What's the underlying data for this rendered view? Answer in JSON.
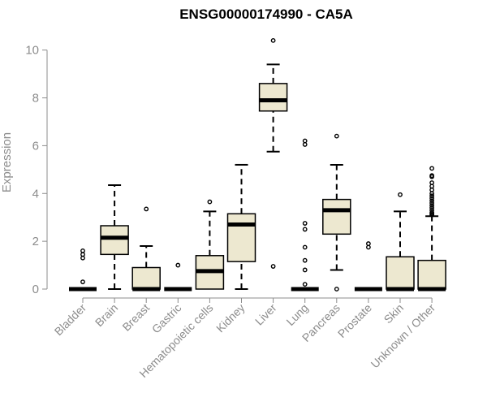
{
  "chart_data": {
    "type": "box",
    "title": "ENSG00000174990 - CA5A",
    "ylabel": "Expression",
    "xlabel": "",
    "ylim": [
      0,
      10.6
    ],
    "yticks": [
      0,
      2,
      4,
      6,
      8,
      10
    ],
    "grid": false,
    "legend": "none",
    "box_fill": "#ede8d0",
    "categories": [
      "Bladder",
      "Brain",
      "Breast",
      "Gastric",
      "Hematopoietic cells",
      "Kidney",
      "Liver",
      "Lung",
      "Pancreas",
      "Prostate",
      "Skin",
      "Unknown / Other"
    ],
    "boxes": [
      {
        "category": "Bladder",
        "q1": 0,
        "median": 0,
        "q3": 0,
        "whisker_low": 0,
        "whisker_high": 0,
        "outliers": [
          1.6,
          1.45,
          1.3,
          0.3
        ]
      },
      {
        "category": "Brain",
        "q1": 1.45,
        "median": 2.15,
        "q3": 2.65,
        "whisker_low": 0,
        "whisker_high": 4.35,
        "outliers": []
      },
      {
        "category": "Breast",
        "q1": 0,
        "median": 0,
        "q3": 0.9,
        "whisker_low": 0,
        "whisker_high": 1.8,
        "outliers": [
          3.35
        ]
      },
      {
        "category": "Gastric",
        "q1": 0,
        "median": 0,
        "q3": 0,
        "whisker_low": 0,
        "whisker_high": 0,
        "outliers": [
          1.0
        ]
      },
      {
        "category": "Hematopoietic cells",
        "q1": 0,
        "median": 0.75,
        "q3": 1.4,
        "whisker_low": 0,
        "whisker_high": 3.25,
        "outliers": [
          3.65
        ]
      },
      {
        "category": "Kidney",
        "q1": 1.15,
        "median": 2.7,
        "q3": 3.15,
        "whisker_low": 0,
        "whisker_high": 5.2,
        "outliers": []
      },
      {
        "category": "Liver",
        "q1": 7.45,
        "median": 7.9,
        "q3": 8.6,
        "whisker_low": 5.75,
        "whisker_high": 9.4,
        "outliers": [
          10.4,
          0.95
        ]
      },
      {
        "category": "Lung",
        "q1": 0,
        "median": 0,
        "q3": 0,
        "whisker_low": 0,
        "whisker_high": 0,
        "outliers": [
          6.2,
          6.05,
          2.75,
          2.5,
          1.75,
          1.2,
          0.8,
          0.2
        ]
      },
      {
        "category": "Pancreas",
        "q1": 2.3,
        "median": 3.3,
        "q3": 3.75,
        "whisker_low": 0.8,
        "whisker_high": 5.2,
        "outliers": [
          6.4,
          0
        ]
      },
      {
        "category": "Prostate",
        "q1": 0,
        "median": 0,
        "q3": 0,
        "whisker_low": 0,
        "whisker_high": 0,
        "outliers": [
          1.9,
          1.75
        ]
      },
      {
        "category": "Skin",
        "q1": 0,
        "median": 0,
        "q3": 1.35,
        "whisker_low": 0,
        "whisker_high": 3.25,
        "outliers": [
          3.95
        ]
      },
      {
        "category": "Unknown / Other",
        "q1": 0,
        "median": 0,
        "q3": 1.2,
        "whisker_low": 0,
        "whisker_high": 3.05,
        "outliers": [
          5.05,
          4.75,
          4.7,
          4.45,
          4.3,
          4.15,
          4.0,
          3.9,
          3.8,
          3.7,
          3.6,
          3.5,
          3.4,
          3.3,
          3.2,
          3.15,
          3.1
        ]
      }
    ]
  }
}
